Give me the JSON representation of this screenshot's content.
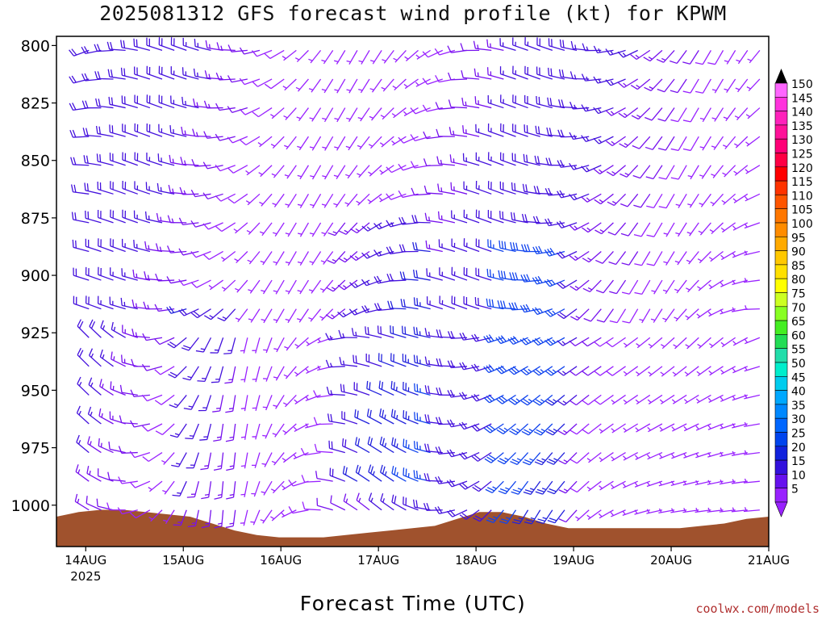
{
  "chart_data": {
    "type": "wind-profile",
    "title": "2025081312 GFS forecast wind profile (kt) for KPWM",
    "xlabel": "Forecast Time (UTC)",
    "ylabel": "",
    "credit": "coolwx.com/models",
    "y_axis": {
      "scale": "pressure (hPa), increasing downward",
      "ticks": [
        800,
        825,
        850,
        875,
        900,
        925,
        950,
        975,
        1000
      ],
      "range": [
        796,
        1018
      ]
    },
    "x_axis": {
      "ticks": [
        "14AUG",
        "15AUG",
        "16AUG",
        "17AUG",
        "18AUG",
        "19AUG",
        "20AUG",
        "21AUG"
      ],
      "year_label": "2025",
      "range_days": [
        -0.3,
        7.0
      ]
    },
    "colorbar": {
      "levels": [
        150,
        145,
        140,
        135,
        130,
        125,
        120,
        115,
        110,
        105,
        100,
        95,
        90,
        85,
        80,
        75,
        70,
        65,
        60,
        55,
        50,
        45,
        40,
        35,
        30,
        25,
        20,
        15,
        10,
        5
      ],
      "colors": [
        "#ff66ff",
        "#ff33dd",
        "#ff22bb",
        "#ff1199",
        "#ff0077",
        "#ff0044",
        "#ff0000",
        "#ff3300",
        "#ff5500",
        "#ff7700",
        "#ff8c00",
        "#ffaa00",
        "#ffc800",
        "#ffe000",
        "#ffff00",
        "#ccff22",
        "#88ff22",
        "#44ee22",
        "#22dd55",
        "#22ddaa",
        "#00eecc",
        "#00ccee",
        "#00a8ff",
        "#0088ff",
        "#0066ff",
        "#0044ee",
        "#1122dd",
        "#3311dd",
        "#6611ee",
        "#9922ff"
      ]
    },
    "terrain": {
      "color": "#a0522d",
      "surface_pressure": [
        1005,
        1003,
        1002,
        1002,
        1003,
        1004,
        1005,
        1008,
        1011,
        1013,
        1014,
        1014,
        1014,
        1013,
        1012,
        1011,
        1010,
        1009,
        1006,
        1003,
        1003,
        1005,
        1008,
        1010,
        1010,
        1010,
        1010,
        1010,
        1010,
        1009,
        1008,
        1006,
        1005
      ]
    },
    "wind_pattern": {
      "levels": [
        800,
        812.5,
        825,
        837.5,
        850,
        862.5,
        875,
        887.5,
        900,
        912.5,
        925,
        937.5,
        950,
        962.5,
        975,
        987.5,
        1000
      ],
      "times": [
        0,
        0.125,
        0.25,
        0.375,
        0.5,
        0.625,
        0.75,
        0.875,
        1.0,
        1.125,
        1.25,
        1.375,
        1.5,
        1.625,
        1.75,
        1.875,
        2.0,
        2.125,
        2.25,
        2.375,
        2.5,
        2.625,
        2.75,
        2.875,
        3.0,
        3.125,
        3.25,
        3.375,
        3.5,
        3.625,
        3.75,
        3.875,
        4.0,
        4.125,
        4.25,
        4.375,
        4.5,
        4.625,
        4.75,
        4.875,
        5.0,
        5.125,
        5.25,
        5.375,
        5.5,
        5.625,
        5.75,
        5.875,
        6.0,
        6.125,
        6.25,
        6.375,
        6.5,
        6.625,
        6.75,
        6.875,
        7.0
      ]
    }
  }
}
